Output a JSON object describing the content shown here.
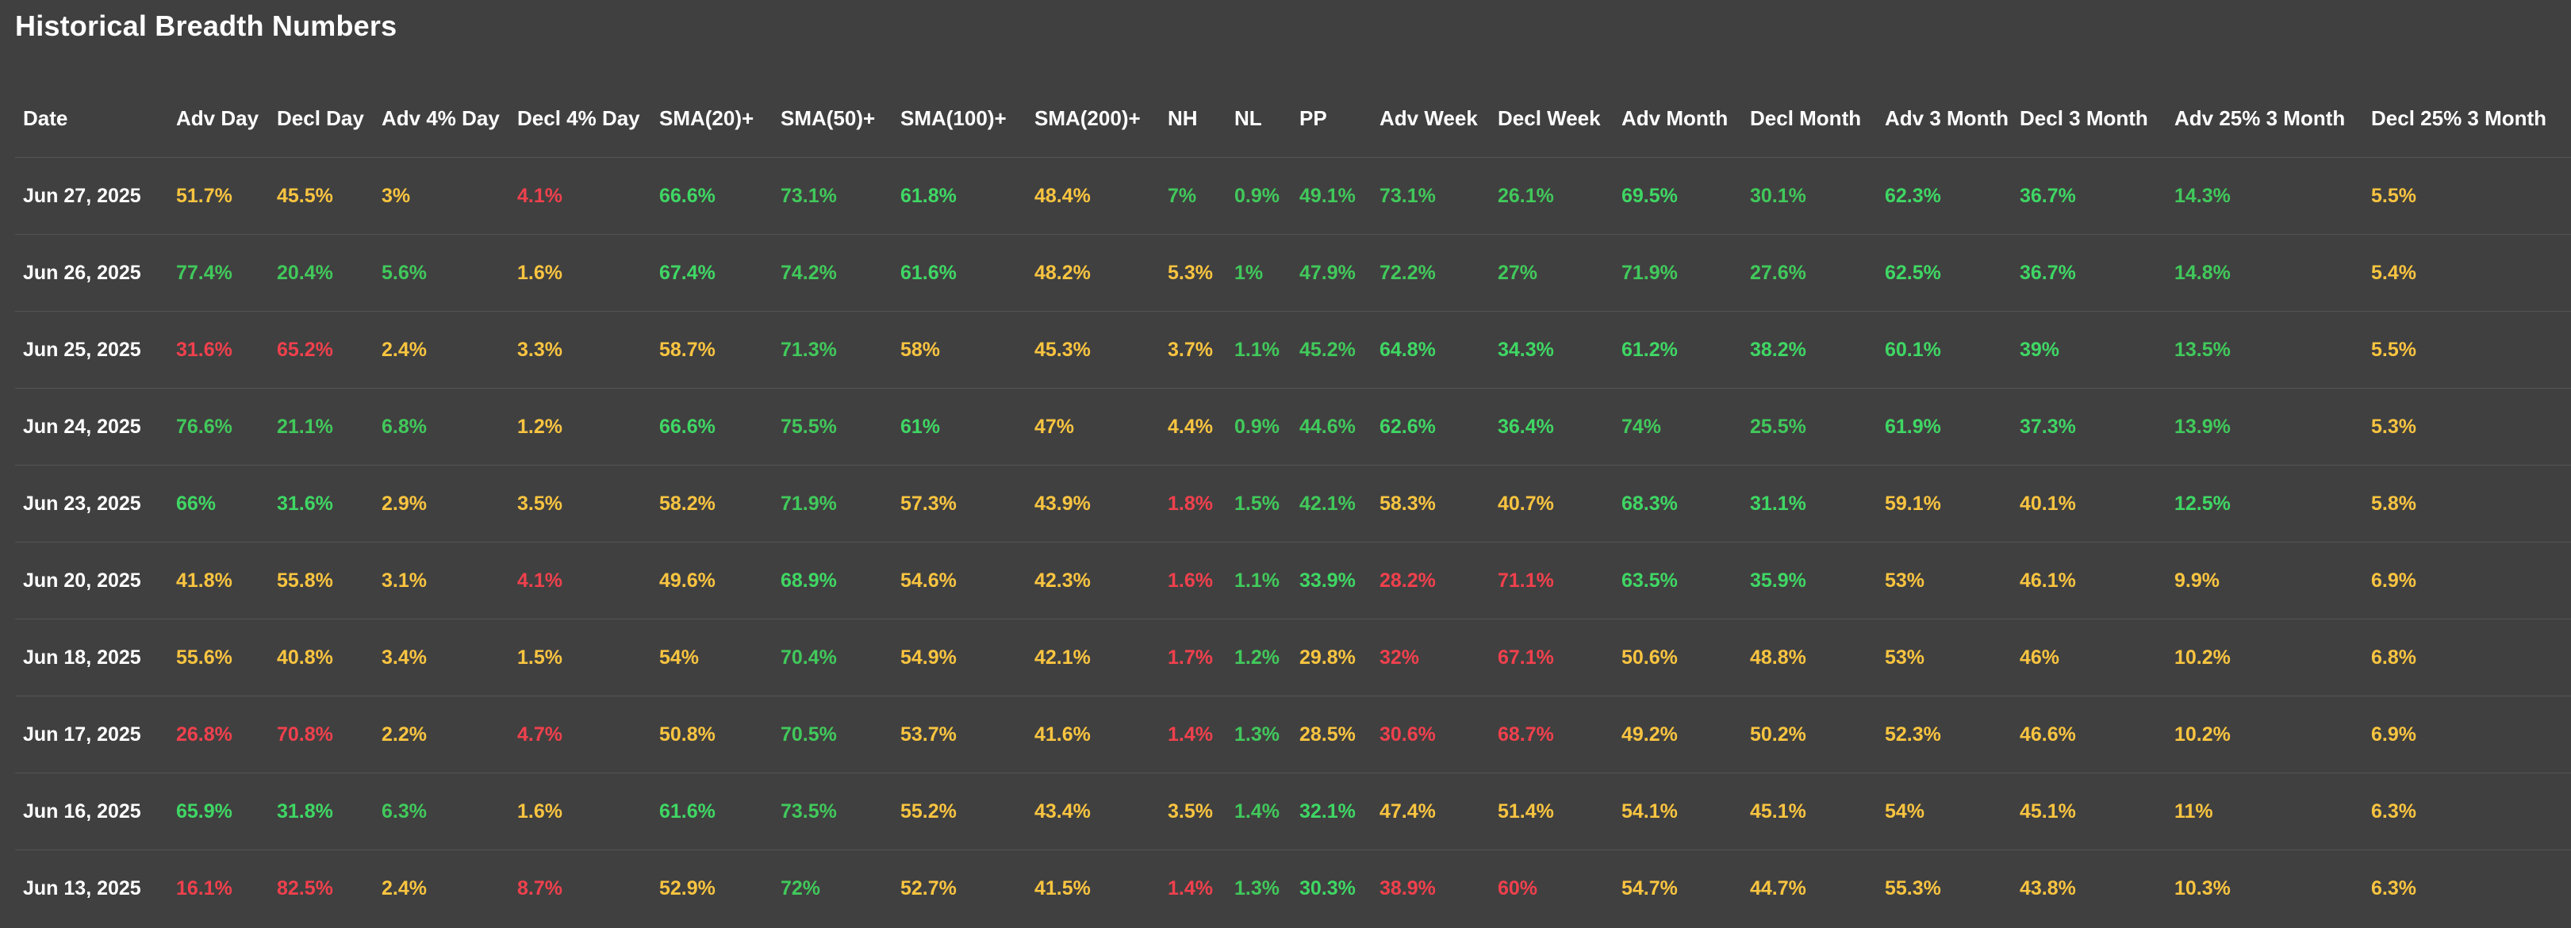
{
  "page": {
    "title": "Historical Breadth Numbers"
  },
  "colors": {
    "background": "#404040",
    "green": "#3fd764",
    "light_green": "#41c95b",
    "yellow": "#f9c440",
    "red": "#f0404d",
    "text": "#ffffff"
  },
  "table": {
    "columns": [
      "Date",
      "Adv Day",
      "Decl Day",
      "Adv 4% Day",
      "Decl 4% Day",
      "SMA(20)+",
      "SMA(50)+",
      "SMA(100)+",
      "SMA(200)+",
      "NH",
      "NL",
      "PP",
      "Adv Week",
      "Decl Week",
      "Adv Month",
      "Decl Month",
      "Adv 3 Month",
      "Decl 3 Month",
      "Adv 25% 3 Month",
      "Decl 25% 3 Month"
    ],
    "rows": [
      {
        "cells": [
          {
            "v": "Jun 27, 2025",
            "c": "date"
          },
          {
            "v": "51.7%",
            "c": "y"
          },
          {
            "v": "45.5%",
            "c": "y"
          },
          {
            "v": "3%",
            "c": "y"
          },
          {
            "v": "4.1%",
            "c": "r"
          },
          {
            "v": "66.6%",
            "c": "g"
          },
          {
            "v": "73.1%",
            "c": "lg"
          },
          {
            "v": "61.8%",
            "c": "g"
          },
          {
            "v": "48.4%",
            "c": "y"
          },
          {
            "v": "7%",
            "c": "lg"
          },
          {
            "v": "0.9%",
            "c": "lg"
          },
          {
            "v": "49.1%",
            "c": "lg"
          },
          {
            "v": "73.1%",
            "c": "lg"
          },
          {
            "v": "26.1%",
            "c": "lg"
          },
          {
            "v": "69.5%",
            "c": "g"
          },
          {
            "v": "30.1%",
            "c": "lg"
          },
          {
            "v": "62.3%",
            "c": "g"
          },
          {
            "v": "36.7%",
            "c": "g"
          },
          {
            "v": "14.3%",
            "c": "lg"
          },
          {
            "v": "5.5%",
            "c": "y"
          }
        ]
      },
      {
        "cells": [
          {
            "v": "Jun 26, 2025",
            "c": "date"
          },
          {
            "v": "77.4%",
            "c": "lg"
          },
          {
            "v": "20.4%",
            "c": "lg"
          },
          {
            "v": "5.6%",
            "c": "lg"
          },
          {
            "v": "1.6%",
            "c": "y"
          },
          {
            "v": "67.4%",
            "c": "g"
          },
          {
            "v": "74.2%",
            "c": "lg"
          },
          {
            "v": "61.6%",
            "c": "g"
          },
          {
            "v": "48.2%",
            "c": "y"
          },
          {
            "v": "5.3%",
            "c": "y"
          },
          {
            "v": "1%",
            "c": "lg"
          },
          {
            "v": "47.9%",
            "c": "lg"
          },
          {
            "v": "72.2%",
            "c": "lg"
          },
          {
            "v": "27%",
            "c": "lg"
          },
          {
            "v": "71.9%",
            "c": "lg"
          },
          {
            "v": "27.6%",
            "c": "lg"
          },
          {
            "v": "62.5%",
            "c": "g"
          },
          {
            "v": "36.7%",
            "c": "g"
          },
          {
            "v": "14.8%",
            "c": "lg"
          },
          {
            "v": "5.4%",
            "c": "y"
          }
        ]
      },
      {
        "cells": [
          {
            "v": "Jun 25, 2025",
            "c": "date"
          },
          {
            "v": "31.6%",
            "c": "r"
          },
          {
            "v": "65.2%",
            "c": "r"
          },
          {
            "v": "2.4%",
            "c": "y"
          },
          {
            "v": "3.3%",
            "c": "y"
          },
          {
            "v": "58.7%",
            "c": "y"
          },
          {
            "v": "71.3%",
            "c": "lg"
          },
          {
            "v": "58%",
            "c": "y"
          },
          {
            "v": "45.3%",
            "c": "y"
          },
          {
            "v": "3.7%",
            "c": "y"
          },
          {
            "v": "1.1%",
            "c": "lg"
          },
          {
            "v": "45.2%",
            "c": "lg"
          },
          {
            "v": "64.8%",
            "c": "g"
          },
          {
            "v": "34.3%",
            "c": "g"
          },
          {
            "v": "61.2%",
            "c": "g"
          },
          {
            "v": "38.2%",
            "c": "g"
          },
          {
            "v": "60.1%",
            "c": "g"
          },
          {
            "v": "39%",
            "c": "g"
          },
          {
            "v": "13.5%",
            "c": "lg"
          },
          {
            "v": "5.5%",
            "c": "y"
          }
        ]
      },
      {
        "cells": [
          {
            "v": "Jun 24, 2025",
            "c": "date"
          },
          {
            "v": "76.6%",
            "c": "lg"
          },
          {
            "v": "21.1%",
            "c": "lg"
          },
          {
            "v": "6.8%",
            "c": "lg"
          },
          {
            "v": "1.2%",
            "c": "y"
          },
          {
            "v": "66.6%",
            "c": "g"
          },
          {
            "v": "75.5%",
            "c": "lg"
          },
          {
            "v": "61%",
            "c": "g"
          },
          {
            "v": "47%",
            "c": "y"
          },
          {
            "v": "4.4%",
            "c": "y"
          },
          {
            "v": "0.9%",
            "c": "lg"
          },
          {
            "v": "44.6%",
            "c": "lg"
          },
          {
            "v": "62.6%",
            "c": "g"
          },
          {
            "v": "36.4%",
            "c": "g"
          },
          {
            "v": "74%",
            "c": "lg"
          },
          {
            "v": "25.5%",
            "c": "lg"
          },
          {
            "v": "61.9%",
            "c": "g"
          },
          {
            "v": "37.3%",
            "c": "g"
          },
          {
            "v": "13.9%",
            "c": "lg"
          },
          {
            "v": "5.3%",
            "c": "y"
          }
        ]
      },
      {
        "cells": [
          {
            "v": "Jun 23, 2025",
            "c": "date"
          },
          {
            "v": "66%",
            "c": "g"
          },
          {
            "v": "31.6%",
            "c": "g"
          },
          {
            "v": "2.9%",
            "c": "y"
          },
          {
            "v": "3.5%",
            "c": "y"
          },
          {
            "v": "58.2%",
            "c": "y"
          },
          {
            "v": "71.9%",
            "c": "lg"
          },
          {
            "v": "57.3%",
            "c": "y"
          },
          {
            "v": "43.9%",
            "c": "y"
          },
          {
            "v": "1.8%",
            "c": "r"
          },
          {
            "v": "1.5%",
            "c": "lg"
          },
          {
            "v": "42.1%",
            "c": "lg"
          },
          {
            "v": "58.3%",
            "c": "y"
          },
          {
            "v": "40.7%",
            "c": "y"
          },
          {
            "v": "68.3%",
            "c": "g"
          },
          {
            "v": "31.1%",
            "c": "g"
          },
          {
            "v": "59.1%",
            "c": "y"
          },
          {
            "v": "40.1%",
            "c": "y"
          },
          {
            "v": "12.5%",
            "c": "g"
          },
          {
            "v": "5.8%",
            "c": "y"
          }
        ]
      },
      {
        "cells": [
          {
            "v": "Jun 20, 2025",
            "c": "date"
          },
          {
            "v": "41.8%",
            "c": "y"
          },
          {
            "v": "55.8%",
            "c": "y"
          },
          {
            "v": "3.1%",
            "c": "y"
          },
          {
            "v": "4.1%",
            "c": "r"
          },
          {
            "v": "49.6%",
            "c": "y"
          },
          {
            "v": "68.9%",
            "c": "g"
          },
          {
            "v": "54.6%",
            "c": "y"
          },
          {
            "v": "42.3%",
            "c": "y"
          },
          {
            "v": "1.6%",
            "c": "r"
          },
          {
            "v": "1.1%",
            "c": "lg"
          },
          {
            "v": "33.9%",
            "c": "g"
          },
          {
            "v": "28.2%",
            "c": "r"
          },
          {
            "v": "71.1%",
            "c": "r"
          },
          {
            "v": "63.5%",
            "c": "g"
          },
          {
            "v": "35.9%",
            "c": "g"
          },
          {
            "v": "53%",
            "c": "y"
          },
          {
            "v": "46.1%",
            "c": "y"
          },
          {
            "v": "9.9%",
            "c": "y"
          },
          {
            "v": "6.9%",
            "c": "y"
          }
        ]
      },
      {
        "cells": [
          {
            "v": "Jun 18, 2025",
            "c": "date"
          },
          {
            "v": "55.6%",
            "c": "y"
          },
          {
            "v": "40.8%",
            "c": "y"
          },
          {
            "v": "3.4%",
            "c": "y"
          },
          {
            "v": "1.5%",
            "c": "y"
          },
          {
            "v": "54%",
            "c": "y"
          },
          {
            "v": "70.4%",
            "c": "lg"
          },
          {
            "v": "54.9%",
            "c": "y"
          },
          {
            "v": "42.1%",
            "c": "y"
          },
          {
            "v": "1.7%",
            "c": "r"
          },
          {
            "v": "1.2%",
            "c": "lg"
          },
          {
            "v": "29.8%",
            "c": "y"
          },
          {
            "v": "32%",
            "c": "r"
          },
          {
            "v": "67.1%",
            "c": "r"
          },
          {
            "v": "50.6%",
            "c": "y"
          },
          {
            "v": "48.8%",
            "c": "y"
          },
          {
            "v": "53%",
            "c": "y"
          },
          {
            "v": "46%",
            "c": "y"
          },
          {
            "v": "10.2%",
            "c": "y"
          },
          {
            "v": "6.8%",
            "c": "y"
          }
        ]
      },
      {
        "cells": [
          {
            "v": "Jun 17, 2025",
            "c": "date"
          },
          {
            "v": "26.8%",
            "c": "r"
          },
          {
            "v": "70.8%",
            "c": "r"
          },
          {
            "v": "2.2%",
            "c": "y"
          },
          {
            "v": "4.7%",
            "c": "r"
          },
          {
            "v": "50.8%",
            "c": "y"
          },
          {
            "v": "70.5%",
            "c": "lg"
          },
          {
            "v": "53.7%",
            "c": "y"
          },
          {
            "v": "41.6%",
            "c": "y"
          },
          {
            "v": "1.4%",
            "c": "r"
          },
          {
            "v": "1.3%",
            "c": "lg"
          },
          {
            "v": "28.5%",
            "c": "y"
          },
          {
            "v": "30.6%",
            "c": "r"
          },
          {
            "v": "68.7%",
            "c": "r"
          },
          {
            "v": "49.2%",
            "c": "y"
          },
          {
            "v": "50.2%",
            "c": "y"
          },
          {
            "v": "52.3%",
            "c": "y"
          },
          {
            "v": "46.6%",
            "c": "y"
          },
          {
            "v": "10.2%",
            "c": "y"
          },
          {
            "v": "6.9%",
            "c": "y"
          }
        ]
      },
      {
        "cells": [
          {
            "v": "Jun 16, 2025",
            "c": "date"
          },
          {
            "v": "65.9%",
            "c": "g"
          },
          {
            "v": "31.8%",
            "c": "g"
          },
          {
            "v": "6.3%",
            "c": "lg"
          },
          {
            "v": "1.6%",
            "c": "y"
          },
          {
            "v": "61.6%",
            "c": "g"
          },
          {
            "v": "73.5%",
            "c": "lg"
          },
          {
            "v": "55.2%",
            "c": "y"
          },
          {
            "v": "43.4%",
            "c": "y"
          },
          {
            "v": "3.5%",
            "c": "y"
          },
          {
            "v": "1.4%",
            "c": "lg"
          },
          {
            "v": "32.1%",
            "c": "g"
          },
          {
            "v": "47.4%",
            "c": "y"
          },
          {
            "v": "51.4%",
            "c": "y"
          },
          {
            "v": "54.1%",
            "c": "y"
          },
          {
            "v": "45.1%",
            "c": "y"
          },
          {
            "v": "54%",
            "c": "y"
          },
          {
            "v": "45.1%",
            "c": "y"
          },
          {
            "v": "11%",
            "c": "y"
          },
          {
            "v": "6.3%",
            "c": "y"
          }
        ]
      },
      {
        "cells": [
          {
            "v": "Jun 13, 2025",
            "c": "date"
          },
          {
            "v": "16.1%",
            "c": "r"
          },
          {
            "v": "82.5%",
            "c": "r"
          },
          {
            "v": "2.4%",
            "c": "y"
          },
          {
            "v": "8.7%",
            "c": "r"
          },
          {
            "v": "52.9%",
            "c": "y"
          },
          {
            "v": "72%",
            "c": "lg"
          },
          {
            "v": "52.7%",
            "c": "y"
          },
          {
            "v": "41.5%",
            "c": "y"
          },
          {
            "v": "1.4%",
            "c": "r"
          },
          {
            "v": "1.3%",
            "c": "lg"
          },
          {
            "v": "30.3%",
            "c": "g"
          },
          {
            "v": "38.9%",
            "c": "r"
          },
          {
            "v": "60%",
            "c": "r"
          },
          {
            "v": "54.7%",
            "c": "y"
          },
          {
            "v": "44.7%",
            "c": "y"
          },
          {
            "v": "55.3%",
            "c": "y"
          },
          {
            "v": "43.8%",
            "c": "y"
          },
          {
            "v": "10.3%",
            "c": "y"
          },
          {
            "v": "6.3%",
            "c": "y"
          }
        ]
      }
    ]
  }
}
